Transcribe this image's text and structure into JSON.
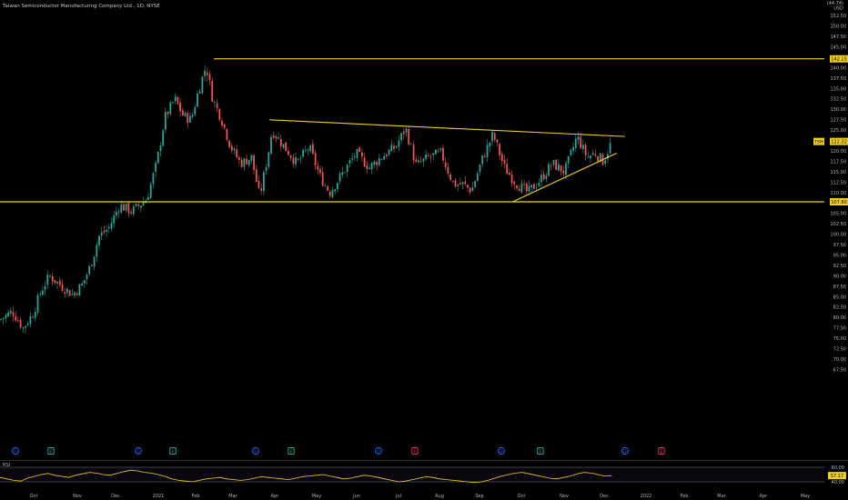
{
  "header": {
    "title": "Taiwan Semiconductor Manufacturing Company Ltd., 1D, NYSE",
    "currency_top": "(44.74)",
    "currency": "USD"
  },
  "price_axis": {
    "ticks": [
      "152.50",
      "150.00",
      "147.50",
      "145.00",
      "142.50",
      "140.00",
      "137.50",
      "135.00",
      "132.50",
      "130.00",
      "127.50",
      "125.00",
      "122.50",
      "120.00",
      "117.50",
      "115.00",
      "112.50",
      "110.00",
      "107.50",
      "105.00",
      "102.50",
      "100.00",
      "97.50",
      "95.00",
      "92.50",
      "90.00",
      "87.50",
      "85.00",
      "82.50",
      "80.00",
      "77.50",
      "75.00",
      "72.50",
      "70.00",
      "67.50"
    ],
    "resistance_label": "142.15",
    "support_label": "107.80",
    "symbol_tag": "TSM",
    "last_price": "122.32"
  },
  "time_axis": {
    "labels": [
      "Oct",
      "Nov",
      "Dec",
      "2021",
      "Feb",
      "Mar",
      "Apr",
      "May",
      "Jun",
      "Jul",
      "Aug",
      "Sep",
      "Oct",
      "Nov",
      "Dec",
      "2022",
      "Feb",
      "Mar",
      "Apr",
      "May"
    ]
  },
  "rsi": {
    "label": "RSI",
    "upper": "80.00",
    "lower": "40.00",
    "value": "57.17"
  },
  "events": [
    {
      "type": "dividend",
      "glyph": "D"
    },
    {
      "type": "earnings",
      "glyph": "E"
    },
    {
      "type": "dividend",
      "glyph": "D"
    },
    {
      "type": "earnings",
      "glyph": "E"
    },
    {
      "type": "dividend",
      "glyph": "D"
    },
    {
      "type": "earnings",
      "glyph": "E"
    },
    {
      "type": "dividend",
      "glyph": "D"
    },
    {
      "type": "earnings-future",
      "glyph": "E"
    },
    {
      "type": "dividend",
      "glyph": "D"
    },
    {
      "type": "earnings",
      "glyph": "E"
    },
    {
      "type": "dividend",
      "glyph": "D"
    },
    {
      "type": "earnings-future",
      "glyph": "E"
    }
  ],
  "colors": {
    "background": "#000000",
    "up": "#26a69a",
    "down": "#ef5350",
    "trendline": "#f0d01e",
    "rsi_line": "#f0d01e",
    "dividend": "#2962ff",
    "earnings": "#26a69a",
    "earnings_future": "#e91e63"
  },
  "chart_data": {
    "type": "candlestick",
    "ylim": [
      67.5,
      153.5
    ],
    "levels": {
      "resistance": 142.15,
      "support": 107.8
    },
    "trendlines": [
      {
        "name": "upper-descending",
        "from": [
          0.327,
          127.5
        ],
        "to": [
          0.758,
          123.5
        ]
      },
      {
        "name": "rising-support",
        "from": [
          0.622,
          107.8
        ],
        "to": [
          0.748,
          119.5
        ]
      }
    ],
    "close_path": [
      {
        "x": 0.0,
        "y": 79.5
      },
      {
        "x": 0.015,
        "y": 81.5
      },
      {
        "x": 0.028,
        "y": 77.5
      },
      {
        "x": 0.04,
        "y": 81.0
      },
      {
        "x": 0.05,
        "y": 86.5
      },
      {
        "x": 0.06,
        "y": 90.0
      },
      {
        "x": 0.075,
        "y": 87.5
      },
      {
        "x": 0.088,
        "y": 85.5
      },
      {
        "x": 0.1,
        "y": 88.0
      },
      {
        "x": 0.11,
        "y": 92.5
      },
      {
        "x": 0.12,
        "y": 99.5
      },
      {
        "x": 0.132,
        "y": 101.5
      },
      {
        "x": 0.145,
        "y": 107.0
      },
      {
        "x": 0.16,
        "y": 105.5
      },
      {
        "x": 0.178,
        "y": 108.5
      },
      {
        "x": 0.19,
        "y": 117.0
      },
      {
        "x": 0.2,
        "y": 128.0
      },
      {
        "x": 0.212,
        "y": 132.5
      },
      {
        "x": 0.222,
        "y": 128.5
      },
      {
        "x": 0.232,
        "y": 127.5
      },
      {
        "x": 0.24,
        "y": 134.0
      },
      {
        "x": 0.25,
        "y": 140.5
      },
      {
        "x": 0.258,
        "y": 132.5
      },
      {
        "x": 0.268,
        "y": 128.0
      },
      {
        "x": 0.28,
        "y": 121.0
      },
      {
        "x": 0.292,
        "y": 117.0
      },
      {
        "x": 0.305,
        "y": 118.5
      },
      {
        "x": 0.315,
        "y": 109.0
      },
      {
        "x": 0.325,
        "y": 119.0
      },
      {
        "x": 0.33,
        "y": 125.0
      },
      {
        "x": 0.345,
        "y": 121.0
      },
      {
        "x": 0.36,
        "y": 117.0
      },
      {
        "x": 0.375,
        "y": 121.0
      },
      {
        "x": 0.388,
        "y": 114.0
      },
      {
        "x": 0.4,
        "y": 110.0
      },
      {
        "x": 0.415,
        "y": 114.5
      },
      {
        "x": 0.432,
        "y": 119.5
      },
      {
        "x": 0.448,
        "y": 116.0
      },
      {
        "x": 0.462,
        "y": 118.5
      },
      {
        "x": 0.48,
        "y": 121.0
      },
      {
        "x": 0.492,
        "y": 125.5
      },
      {
        "x": 0.505,
        "y": 116.5
      },
      {
        "x": 0.52,
        "y": 118.5
      },
      {
        "x": 0.535,
        "y": 119.5
      },
      {
        "x": 0.55,
        "y": 112.0
      },
      {
        "x": 0.562,
        "y": 112.0
      },
      {
        "x": 0.572,
        "y": 110.5
      },
      {
        "x": 0.585,
        "y": 118.0
      },
      {
        "x": 0.598,
        "y": 124.0
      },
      {
        "x": 0.612,
        "y": 116.0
      },
      {
        "x": 0.625,
        "y": 112.5
      },
      {
        "x": 0.64,
        "y": 110.0
      },
      {
        "x": 0.655,
        "y": 113.0
      },
      {
        "x": 0.67,
        "y": 117.0
      },
      {
        "x": 0.685,
        "y": 115.0
      },
      {
        "x": 0.7,
        "y": 123.5
      },
      {
        "x": 0.712,
        "y": 118.5
      },
      {
        "x": 0.722,
        "y": 119.5
      },
      {
        "x": 0.732,
        "y": 117.5
      },
      {
        "x": 0.742,
        "y": 122.3
      }
    ],
    "rsi_series": [
      52,
      48,
      44,
      42,
      50,
      55,
      60,
      63,
      58,
      55,
      52,
      58,
      62,
      66,
      64,
      60,
      58,
      63,
      68,
      72,
      70,
      66,
      64,
      60,
      55,
      48,
      44,
      42,
      40,
      44,
      48,
      50,
      52,
      48,
      46,
      44,
      46,
      50,
      54,
      52,
      50,
      48,
      46,
      50,
      54,
      56,
      58,
      60,
      56,
      52,
      48,
      50,
      54,
      58,
      56,
      52,
      48,
      44,
      40,
      42,
      46,
      50,
      54,
      52,
      48,
      46,
      44,
      42,
      40,
      38,
      40,
      44,
      50,
      56,
      60,
      64,
      66,
      62,
      58,
      54,
      50,
      48,
      52,
      56,
      62,
      66,
      64,
      60,
      56,
      57
    ]
  }
}
